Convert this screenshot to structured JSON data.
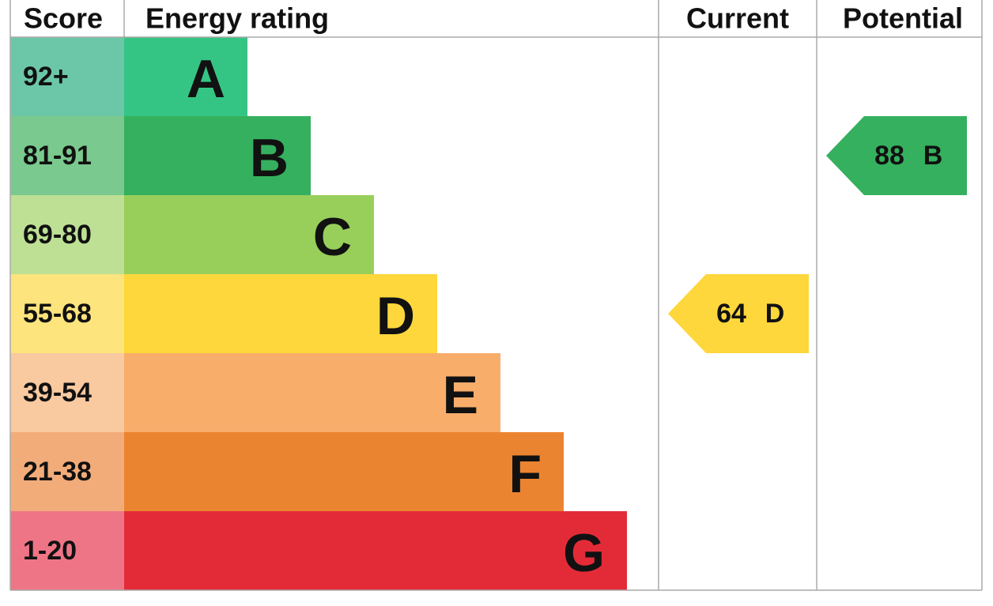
{
  "header": {
    "score": "Score",
    "rating": "Energy rating",
    "current": "Current",
    "potential": "Potential"
  },
  "bands": [
    {
      "score": "92+",
      "rating": "A",
      "color": "#34c585",
      "score_color": "#6cc7a8"
    },
    {
      "score": "81-91",
      "rating": "B",
      "color": "#35b05e",
      "score_color": "#7ac98e"
    },
    {
      "score": "69-80",
      "rating": "C",
      "color": "#98cf5a",
      "score_color": "#bde095"
    },
    {
      "score": "55-68",
      "rating": "D",
      "color": "#fdd73b",
      "score_color": "#fde47c"
    },
    {
      "score": "39-54",
      "rating": "E",
      "color": "#f8ad6b",
      "score_color": "#f9c9a0"
    },
    {
      "score": "21-38",
      "rating": "F",
      "color": "#eb8430",
      "score_color": "#f2ac7a"
    },
    {
      "score": "1-20",
      "rating": "G",
      "color": "#e32b38",
      "score_color": "#ee7586"
    }
  ],
  "current": {
    "value": 64,
    "rating": "D",
    "color": "#fdd73b"
  },
  "potential": {
    "value": 88,
    "rating": "B",
    "color": "#35b05e"
  }
}
